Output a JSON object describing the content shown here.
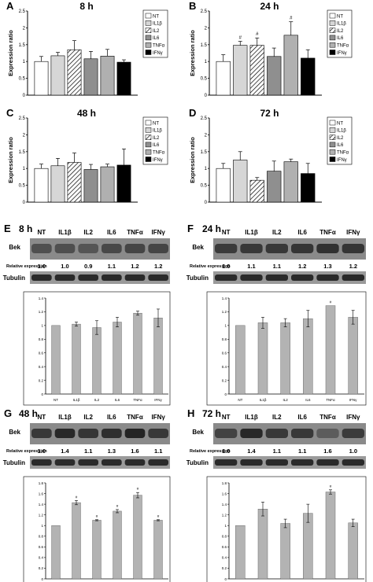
{
  "colors": {
    "NT": "#ffffff",
    "IL1b": "#d6d6d6",
    "IL2": "hatch",
    "IL6": "#8f8f8f",
    "TNFa": "#b0b0b0",
    "IFNy": "#000000",
    "blot_bar": "#b3b3b3"
  },
  "bar_charts": [
    {
      "panel": "A",
      "title": "8 h",
      "ylabel": "Expression ratio",
      "categories": [
        "NT",
        "IL1β",
        "IL2",
        "IL6",
        "TNFα",
        "IFNγ"
      ],
      "values": [
        1.0,
        1.17,
        1.35,
        1.08,
        1.16,
        0.98
      ],
      "errors": [
        0.15,
        0.1,
        0.27,
        0.22,
        0.2,
        0.07
      ],
      "markers": [
        "",
        "",
        "",
        "",
        "",
        ""
      ],
      "ylim": [
        0,
        2.5
      ],
      "yticks": [
        "0",
        "0.5",
        "1",
        "1.5",
        "2",
        "2.5"
      ],
      "legend": [
        "NT",
        "IL1β",
        "IL2",
        "IL6",
        "TNFα",
        "IFNγ"
      ]
    },
    {
      "panel": "B",
      "title": "24 h",
      "ylabel": "Expression ratio",
      "categories": [
        "NT",
        "IL1β",
        "IL2",
        "IL6",
        "TNFα",
        "IFNγ"
      ],
      "values": [
        1.0,
        1.48,
        1.48,
        1.15,
        1.78,
        1.1
      ],
      "errors": [
        0.2,
        0.12,
        0.22,
        0.25,
        0.4,
        0.25
      ],
      "markers": [
        "",
        "#",
        "#",
        "",
        "#",
        ""
      ],
      "ylim": [
        0,
        2.5
      ],
      "yticks": [
        "0",
        "0.5",
        "1",
        "1.5",
        "2",
        "2.5"
      ],
      "legend": [
        "NT",
        "IL1β",
        "IL2",
        "IL6",
        "TNFα",
        "IFNγ"
      ]
    },
    {
      "panel": "C",
      "title": "48 h",
      "ylabel": "Expression ratio",
      "categories": [
        "NT",
        "IL1β",
        "IL2",
        "IL6",
        "TNFα",
        "IFNγ"
      ],
      "values": [
        1.0,
        1.08,
        1.18,
        0.97,
        1.05,
        1.1
      ],
      "errors": [
        0.13,
        0.22,
        0.28,
        0.15,
        0.08,
        0.48
      ],
      "markers": [
        "",
        "",
        "",
        "",
        "",
        ""
      ],
      "ylim": [
        0,
        2.5
      ],
      "yticks": [
        "0",
        "0.5",
        "1",
        "1.5",
        "2",
        "2.5"
      ],
      "legend": [
        "NT",
        "IL1β",
        "IL2",
        "IL6",
        "TNFα",
        "IFNγ"
      ]
    },
    {
      "panel": "D",
      "title": "72 h",
      "ylabel": "Expression ratio",
      "categories": [
        "NT",
        "IL1β",
        "IL2",
        "IL6",
        "TNFα",
        "IFNγ"
      ],
      "values": [
        1.0,
        1.25,
        0.65,
        0.92,
        1.2,
        0.85
      ],
      "errors": [
        0.15,
        0.25,
        0.08,
        0.3,
        0.08,
        0.3
      ],
      "markers": [
        "",
        "",
        "",
        "",
        "",
        ""
      ],
      "ylim": [
        0,
        2.5
      ],
      "yticks": [
        "0",
        "0.5",
        "1",
        "1.5",
        "2",
        "2.5"
      ],
      "legend": [
        "NT",
        "IL1β",
        "IL2",
        "IL6",
        "TNFα",
        "IFNγ"
      ]
    }
  ],
  "blot_panels": [
    {
      "panel": "E",
      "title": "8 h",
      "lanes": [
        "NT",
        "IL1β",
        "IL2",
        "IL6",
        "TNFα",
        "IFNγ"
      ],
      "blot_label": "Bek",
      "rel_label": "Relative expression",
      "tubulin_label": "Tubulin",
      "relative_expression": [
        "1.0",
        "1.0",
        "0.9",
        "1.1",
        "1.2",
        "1.2"
      ],
      "bek_intensity": [
        0.55,
        0.55,
        0.5,
        0.6,
        0.62,
        0.62
      ],
      "chart": {
        "values": [
          1.0,
          1.02,
          0.97,
          1.05,
          1.18,
          1.11
        ],
        "errors": [
          0.0,
          0.03,
          0.1,
          0.07,
          0.03,
          0.13
        ],
        "markers": [
          "",
          "",
          "",
          "",
          "",
          ""
        ],
        "ylim": [
          0,
          1.4
        ],
        "yticks": [
          "0",
          "0.2",
          "0.4",
          "0.6",
          "0.8",
          "1",
          "1.2",
          "1.4"
        ]
      }
    },
    {
      "panel": "F",
      "title": "24 h",
      "lanes": [
        "NT",
        "IL1β",
        "IL2",
        "IL6",
        "TNFα",
        "IFNγ"
      ],
      "blot_label": "Bek",
      "rel_label": "Relative expression",
      "tubulin_label": "Tubulin",
      "relative_expression": [
        "1.0",
        "1.1",
        "1.1",
        "1.2",
        "1.3",
        "1.2"
      ],
      "bek_intensity": [
        0.7,
        0.72,
        0.72,
        0.75,
        0.78,
        0.75
      ],
      "chart": {
        "values": [
          1.0,
          1.04,
          1.04,
          1.1,
          1.29,
          1.12
        ],
        "errors": [
          0.0,
          0.08,
          0.06,
          0.12,
          0.0,
          0.1
        ],
        "markers": [
          "",
          "",
          "",
          "",
          "#",
          ""
        ],
        "ylim": [
          0,
          1.4
        ],
        "yticks": [
          "0",
          "0.2",
          "0.4",
          "0.6",
          "0.8",
          "1",
          "1.2",
          "1.4"
        ]
      }
    },
    {
      "panel": "G",
      "title": "48 h",
      "lanes": [
        "NT",
        "IL1β",
        "IL2",
        "IL6",
        "TNFα",
        "IFNγ"
      ],
      "blot_label": "Bek",
      "rel_label": "Relative expression",
      "tubulin_label": "Tubulin",
      "relative_expression": [
        "1.0",
        "1.4",
        "1.1",
        "1.3",
        "1.6",
        "1.1"
      ],
      "bek_intensity": [
        0.72,
        0.85,
        0.75,
        0.8,
        0.88,
        0.72
      ],
      "chart": {
        "values": [
          1.0,
          1.43,
          1.1,
          1.27,
          1.57,
          1.1
        ],
        "errors": [
          0.0,
          0.04,
          0.01,
          0.03,
          0.05,
          0.01
        ],
        "markers": [
          "",
          "#",
          "#",
          "#",
          "#",
          "#"
        ],
        "ylim": [
          0,
          1.8
        ],
        "yticks": [
          "0",
          "0.2",
          "0.4",
          "0.6",
          "0.8",
          "1",
          "1.2",
          "1.4",
          "1.6",
          "1.8"
        ]
      }
    },
    {
      "panel": "H",
      "title": "72 h",
      "lanes": [
        "NT",
        "IL1β",
        "IL2",
        "IL6",
        "TNFα",
        "IFNγ"
      ],
      "blot_label": "Bek",
      "rel_label": "Relative expression",
      "tubulin_label": "Tubulin",
      "relative_expression": [
        "1.0",
        "1.4",
        "1.1",
        "1.1",
        "1.6",
        "1.0"
      ],
      "bek_intensity": [
        0.65,
        0.85,
        0.72,
        0.72,
        0.45,
        0.7
      ],
      "chart": {
        "values": [
          1.0,
          1.31,
          1.04,
          1.23,
          1.63,
          1.05
        ],
        "errors": [
          0.0,
          0.13,
          0.08,
          0.17,
          0.04,
          0.07
        ],
        "markers": [
          "",
          "",
          "",
          "",
          "#",
          ""
        ],
        "ylim": [
          0,
          1.8
        ],
        "yticks": [
          "0",
          "0.2",
          "0.4",
          "0.6",
          "0.8",
          "1",
          "1.2",
          "1.4",
          "1.6",
          "1.8"
        ]
      }
    }
  ],
  "chart_data": [
    {
      "type": "bar",
      "panel": "A",
      "title": "8 h",
      "ylabel": "Expression ratio",
      "categories": [
        "NT",
        "IL1β",
        "IL2",
        "IL6",
        "TNFα",
        "IFNγ"
      ],
      "values": [
        1.0,
        1.17,
        1.35,
        1.08,
        1.16,
        0.98
      ],
      "ylim": [
        0,
        2.5
      ]
    },
    {
      "type": "bar",
      "panel": "B",
      "title": "24 h",
      "ylabel": "Expression ratio",
      "categories": [
        "NT",
        "IL1β",
        "IL2",
        "IL6",
        "TNFα",
        "IFNγ"
      ],
      "values": [
        1.0,
        1.48,
        1.48,
        1.15,
        1.78,
        1.1
      ],
      "ylim": [
        0,
        2.5
      ]
    },
    {
      "type": "bar",
      "panel": "C",
      "title": "48 h",
      "ylabel": "Expression ratio",
      "categories": [
        "NT",
        "IL1β",
        "IL2",
        "IL6",
        "TNFα",
        "IFNγ"
      ],
      "values": [
        1.0,
        1.08,
        1.18,
        0.97,
        1.05,
        1.1
      ],
      "ylim": [
        0,
        2.5
      ]
    },
    {
      "type": "bar",
      "panel": "D",
      "title": "72 h",
      "ylabel": "Expression ratio",
      "categories": [
        "NT",
        "IL1β",
        "IL2",
        "IL6",
        "TNFα",
        "IFNγ"
      ],
      "values": [
        1.0,
        1.25,
        0.65,
        0.92,
        1.2,
        0.85
      ],
      "ylim": [
        0,
        2.5
      ]
    },
    {
      "type": "bar",
      "panel": "E",
      "title": "8 h",
      "categories": [
        "NT",
        "IL1β",
        "IL2",
        "IL6",
        "TNFα",
        "IFNγ"
      ],
      "values": [
        1.0,
        1.02,
        0.97,
        1.05,
        1.18,
        1.11
      ],
      "ylim": [
        0,
        1.4
      ]
    },
    {
      "type": "bar",
      "panel": "F",
      "title": "24 h",
      "categories": [
        "NT",
        "IL1β",
        "IL2",
        "IL6",
        "TNFα",
        "IFNγ"
      ],
      "values": [
        1.0,
        1.04,
        1.04,
        1.1,
        1.29,
        1.12
      ],
      "ylim": [
        0,
        1.4
      ]
    },
    {
      "type": "bar",
      "panel": "G",
      "title": "48 h",
      "categories": [
        "NT",
        "IL1β",
        "IL2",
        "IL6",
        "TNFα",
        "IFNγ"
      ],
      "values": [
        1.0,
        1.43,
        1.1,
        1.27,
        1.57,
        1.1
      ],
      "ylim": [
        0,
        1.8
      ]
    },
    {
      "type": "bar",
      "panel": "H",
      "title": "72 h",
      "categories": [
        "NT",
        "IL1β",
        "IL2",
        "IL6",
        "TNFα",
        "IFNγ"
      ],
      "values": [
        1.0,
        1.31,
        1.04,
        1.23,
        1.63,
        1.05
      ],
      "ylim": [
        0,
        1.8
      ]
    }
  ]
}
